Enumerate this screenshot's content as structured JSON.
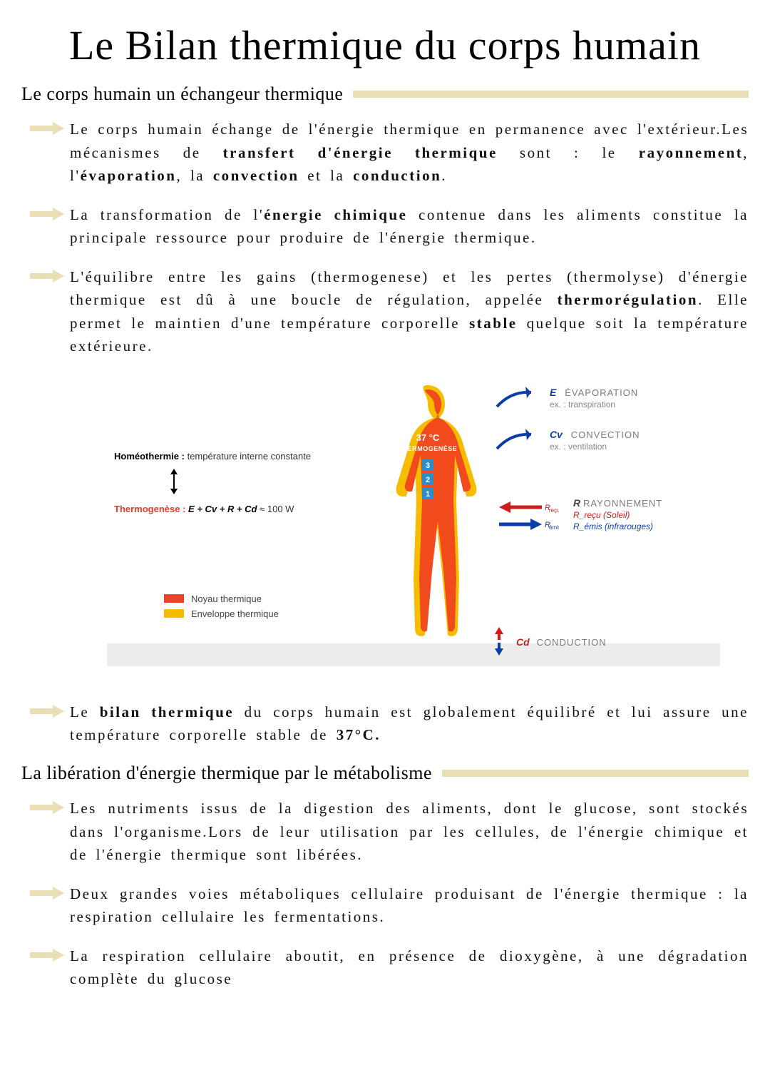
{
  "title": "Le Bilan thermique du corps humain",
  "section1": {
    "heading": "Le corps humain un échangeur thermique",
    "heading_bar_color": "#e8dfb4",
    "bullets": [
      "Le corps humain échange de l'énergie thermique en permanence avec l'extérieur.Les mécanismes de <b>transfert d'énergie thermique</b> sont : le <b>rayonnement</b>, l'<b>évaporation</b>, la <b>convection</b> et la <b>conduction</b>.",
      "La transformation de l'<b>énergie chimique</b> contenue dans les aliments constitue la principale ressource pour produire de l'énergie thermique.",
      "L'équilibre entre les gains (thermogenese) et les pertes (thermolyse) d'énergie thermique est dû à une boucle de régulation, appelée <b>thermorégulation</b>. Elle permet le maintien d'une température corporelle <b>stable</b> quelque soit la température extérieure."
    ],
    "bullet_after_diagram": "Le <b>bilan thermique</b> du corps humain est globalement équilibré et lui assure une température corporelle stable de <b>37°C.</b>"
  },
  "section2": {
    "heading": "La libération d'énergie thermique par le métabolisme",
    "heading_bar_color": "#e8dfb4",
    "bullets": [
      "Les nutriments issus de la digestion des aliments, dont le glucose, sont stockés dans l'organisme.Lors de leur utilisation par les cellules, de l'énergie chimique et de l'énergie thermique sont libérées.",
      "Deux grandes voies métaboliques cellulaire produisant de l'énergie thermique : la respiration cellulaire les fermentations.",
      "La respiration cellulaire aboutit, en présence de dioxygène, à une dégradation complète du glucose"
    ]
  },
  "diagram": {
    "type": "infographic",
    "background_color": "#ffffff",
    "ground_color": "#ececec",
    "body": {
      "fill_color": "#f04a1d",
      "outline_color": "#f6bd00",
      "core_label": "37 °C",
      "core_sub": "THERMOGENÈSE",
      "core_text_color": "#ffffff",
      "squares": [
        "3",
        "2",
        "1"
      ],
      "square_color": "#2a8dcc"
    },
    "left": {
      "homeothermie_label": "Homéothermie :",
      "homeothermie_value": "température interne constante",
      "thermogenese_label": "Thermogenèse :",
      "thermogenese_formula_vars": "E + Cv + R + Cd",
      "thermogenese_formula_value": "≈ 100 W",
      "thermogenese_color": "#e33b2f"
    },
    "legend_left": [
      {
        "color": "#e7452b",
        "label": "Noyau thermique"
      },
      {
        "color": "#f6bd00",
        "label": "Enveloppe thermique"
      }
    ],
    "right": [
      {
        "code": "E",
        "code_color": "#0b3da8",
        "main": "ÉVAPORATION",
        "sub": "ex. : transpiration",
        "arrow_color": "#0b3da8",
        "arrow_type": "out-curve"
      },
      {
        "code": "Cv",
        "code_color": "#0b3da8",
        "main": "CONVECTION",
        "sub": "ex. : ventilation",
        "arrow_color": "#0b3da8",
        "arrow_type": "out-curve"
      }
    ],
    "r_arrows": {
      "in": {
        "code": "R_reçu",
        "color": "#d11a1a"
      },
      "out": {
        "code": "R_émis",
        "color": "#0b3da8"
      },
      "label_code": "R",
      "label_main": "RAYONNEMENT",
      "sub1": "R_reçu (Soleil)",
      "sub2": "R_émis (infrarouges)",
      "sub1_color": "#d11a1a",
      "sub2_color": "#0b3da8"
    },
    "cd": {
      "code": "Cd",
      "code_color": "#c02424",
      "main": "CONDUCTION",
      "arrow_up_color": "#d11a1a",
      "arrow_down_color": "#0b3da8"
    }
  },
  "styles": {
    "arrow_bullet_color": "#e8dfb4",
    "body_text_color": "#111111",
    "body_font_size_pt": 16,
    "title_font_size_pt": 42
  }
}
